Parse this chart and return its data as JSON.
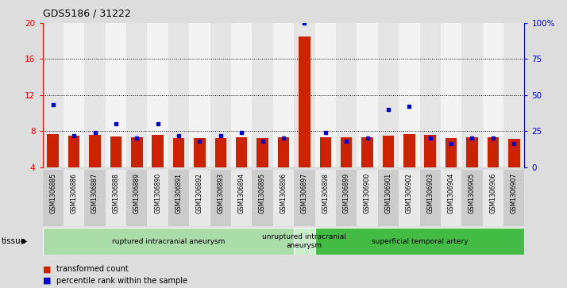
{
  "title": "GDS5186 / 31222",
  "samples": [
    "GSM1306885",
    "GSM1306886",
    "GSM1306887",
    "GSM1306888",
    "GSM1306889",
    "GSM1306890",
    "GSM1306891",
    "GSM1306892",
    "GSM1306893",
    "GSM1306894",
    "GSM1306895",
    "GSM1306896",
    "GSM1306897",
    "GSM1306898",
    "GSM1306899",
    "GSM1306900",
    "GSM1306901",
    "GSM1306902",
    "GSM1306903",
    "GSM1306904",
    "GSM1306905",
    "GSM1306906",
    "GSM1306907"
  ],
  "red_values": [
    7.7,
    7.5,
    7.6,
    7.4,
    7.3,
    7.55,
    7.2,
    7.2,
    7.2,
    7.3,
    7.2,
    7.3,
    18.5,
    7.3,
    7.3,
    7.3,
    7.5,
    7.7,
    7.6,
    7.2,
    7.3,
    7.3,
    7.1
  ],
  "blue_values": [
    43,
    22,
    24,
    30,
    20,
    30,
    22,
    18,
    22,
    24,
    18,
    20,
    100,
    24,
    18,
    20,
    40,
    42,
    20,
    16,
    20,
    20,
    16
  ],
  "ylim_left": [
    4,
    20
  ],
  "ylim_right": [
    0,
    100
  ],
  "yticks_left": [
    4,
    8,
    12,
    16,
    20
  ],
  "yticks_right": [
    0,
    25,
    50,
    75,
    100
  ],
  "ytick_labels_right": [
    "0",
    "25",
    "50",
    "75",
    "100%"
  ],
  "groups": [
    {
      "label": "ruptured intracranial aneurysm",
      "start": 0,
      "end": 11
    },
    {
      "label": "unruptured intracranial\naneurysm",
      "start": 12,
      "end": 12
    },
    {
      "label": "superficial temporal artery",
      "start": 13,
      "end": 22
    }
  ],
  "group_colors": [
    "#aaddaa",
    "#cceecc",
    "#44bb44"
  ],
  "bar_color": "#cc2200",
  "dot_color": "#0000cc",
  "bar_bottom": 4,
  "background_color": "#dddddd",
  "plot_bg": "#ffffff",
  "cell_colors": [
    "#cccccc",
    "#e8e8e8"
  ],
  "tissue_label": "tissue",
  "legend_items": [
    "transformed count",
    "percentile rank within the sample"
  ]
}
